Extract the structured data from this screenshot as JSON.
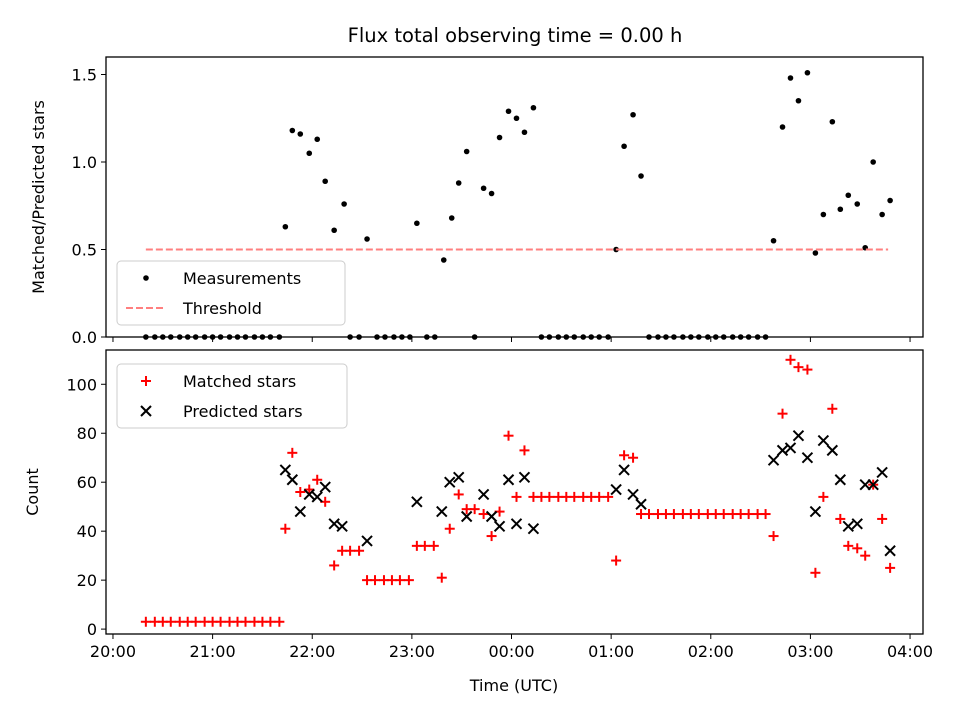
{
  "chart_data": {
    "title": "Flux total observing time = 0.00 h",
    "xlabel": "Time (UTC)",
    "x_ticks": [
      "20:00",
      "21:00",
      "22:00",
      "23:00",
      "00:00",
      "01:00",
      "02:00",
      "03:00",
      "04:00"
    ],
    "x_range_hours": [
      19.93,
      28.13
    ],
    "panels": [
      {
        "type": "scatter",
        "ylabel": "Matched/Predicted stars",
        "ylim": [
          0,
          1.6
        ],
        "yticks": [
          0.0,
          0.5,
          1.0,
          1.5
        ],
        "ytick_labels": [
          "0.0",
          "0.5",
          "1.0",
          "1.5"
        ],
        "legend_position": "lower-left",
        "series": [
          {
            "name": "Measurements",
            "marker": "dot",
            "color": "#000000",
            "points": [
              [
                20.33,
                0
              ],
              [
                20.42,
                0
              ],
              [
                20.5,
                0
              ],
              [
                20.58,
                0
              ],
              [
                20.67,
                0
              ],
              [
                20.75,
                0
              ],
              [
                20.83,
                0
              ],
              [
                20.92,
                0
              ],
              [
                21.0,
                0
              ],
              [
                21.08,
                0
              ],
              [
                21.17,
                0
              ],
              [
                21.25,
                0
              ],
              [
                21.33,
                0
              ],
              [
                21.42,
                0
              ],
              [
                21.5,
                0
              ],
              [
                21.58,
                0
              ],
              [
                21.67,
                0
              ],
              [
                21.73,
                0.63
              ],
              [
                21.8,
                1.18
              ],
              [
                21.88,
                1.16
              ],
              [
                21.97,
                1.05
              ],
              [
                22.05,
                1.13
              ],
              [
                22.13,
                0.89
              ],
              [
                22.22,
                0.61
              ],
              [
                22.32,
                0.76
              ],
              [
                22.38,
                0
              ],
              [
                22.47,
                0
              ],
              [
                22.55,
                0.56
              ],
              [
                22.65,
                0
              ],
              [
                22.73,
                0
              ],
              [
                22.82,
                0
              ],
              [
                22.9,
                0
              ],
              [
                22.98,
                0
              ],
              [
                23.05,
                0.65
              ],
              [
                23.15,
                0
              ],
              [
                23.23,
                0
              ],
              [
                23.32,
                0.44
              ],
              [
                23.4,
                0.68
              ],
              [
                23.47,
                0.88
              ],
              [
                23.55,
                1.06
              ],
              [
                23.63,
                0
              ],
              [
                23.72,
                0.85
              ],
              [
                23.8,
                0.82
              ],
              [
                23.88,
                1.14
              ],
              [
                23.97,
                1.29
              ],
              [
                24.05,
                1.25
              ],
              [
                24.13,
                1.17
              ],
              [
                24.22,
                1.31
              ],
              [
                24.3,
                0
              ],
              [
                24.38,
                0
              ],
              [
                24.47,
                0
              ],
              [
                24.55,
                0
              ],
              [
                24.63,
                0
              ],
              [
                24.72,
                0
              ],
              [
                24.8,
                0
              ],
              [
                24.88,
                0
              ],
              [
                24.97,
                0
              ],
              [
                25.05,
                0.5
              ],
              [
                25.13,
                1.09
              ],
              [
                25.22,
                1.27
              ],
              [
                25.3,
                0.92
              ],
              [
                25.38,
                0
              ],
              [
                25.47,
                0
              ],
              [
                25.55,
                0
              ],
              [
                25.63,
                0
              ],
              [
                25.72,
                0
              ],
              [
                25.8,
                0
              ],
              [
                25.88,
                0
              ],
              [
                25.97,
                0
              ],
              [
                26.05,
                0
              ],
              [
                26.13,
                0
              ],
              [
                26.22,
                0
              ],
              [
                26.3,
                0
              ],
              [
                26.38,
                0
              ],
              [
                26.47,
                0
              ],
              [
                26.55,
                0
              ],
              [
                26.63,
                0.55
              ],
              [
                26.72,
                1.2
              ],
              [
                26.8,
                1.48
              ],
              [
                26.88,
                1.35
              ],
              [
                26.97,
                1.51
              ],
              [
                27.05,
                0.48
              ],
              [
                27.13,
                0.7
              ],
              [
                27.22,
                1.23
              ],
              [
                27.3,
                0.73
              ],
              [
                27.38,
                0.81
              ],
              [
                27.47,
                0.76
              ],
              [
                27.55,
                0.51
              ],
              [
                27.63,
                1.0
              ],
              [
                27.72,
                0.7
              ],
              [
                27.8,
                0.78
              ]
            ]
          },
          {
            "name": "Threshold",
            "style": "dashed",
            "color": "#ff7f7f",
            "points": [
              [
                20.33,
                0.5
              ],
              [
                27.78,
                0.5
              ]
            ]
          }
        ]
      },
      {
        "type": "scatter",
        "ylabel": "Count",
        "ylim": [
          -2,
          114
        ],
        "yticks": [
          0,
          20,
          40,
          60,
          80,
          100
        ],
        "ytick_labels": [
          "0",
          "20",
          "40",
          "60",
          "80",
          "100"
        ],
        "legend_position": "upper-left",
        "series": [
          {
            "name": "Matched stars",
            "marker": "plus",
            "color": "#ff0000",
            "points": [
              [
                20.33,
                3
              ],
              [
                20.42,
                3
              ],
              [
                20.5,
                3
              ],
              [
                20.58,
                3
              ],
              [
                20.67,
                3
              ],
              [
                20.75,
                3
              ],
              [
                20.83,
                3
              ],
              [
                20.92,
                3
              ],
              [
                21.0,
                3
              ],
              [
                21.08,
                3
              ],
              [
                21.17,
                3
              ],
              [
                21.25,
                3
              ],
              [
                21.33,
                3
              ],
              [
                21.42,
                3
              ],
              [
                21.5,
                3
              ],
              [
                21.58,
                3
              ],
              [
                21.67,
                3
              ],
              [
                21.73,
                41
              ],
              [
                21.8,
                72
              ],
              [
                21.88,
                56
              ],
              [
                21.97,
                57
              ],
              [
                22.05,
                61
              ],
              [
                22.13,
                52
              ],
              [
                22.22,
                26
              ],
              [
                22.3,
                32
              ],
              [
                22.38,
                32
              ],
              [
                22.47,
                32
              ],
              [
                22.55,
                20
              ],
              [
                22.63,
                20
              ],
              [
                22.72,
                20
              ],
              [
                22.8,
                20
              ],
              [
                22.88,
                20
              ],
              [
                22.97,
                20
              ],
              [
                23.05,
                34
              ],
              [
                23.13,
                34
              ],
              [
                23.22,
                34
              ],
              [
                23.3,
                21
              ],
              [
                23.38,
                41
              ],
              [
                23.47,
                55
              ],
              [
                23.55,
                49
              ],
              [
                23.63,
                49
              ],
              [
                23.72,
                47
              ],
              [
                23.8,
                38
              ],
              [
                23.88,
                48
              ],
              [
                23.97,
                79
              ],
              [
                24.05,
                54
              ],
              [
                24.13,
                73
              ],
              [
                24.22,
                54
              ],
              [
                24.3,
                54
              ],
              [
                24.38,
                54
              ],
              [
                24.47,
                54
              ],
              [
                24.55,
                54
              ],
              [
                24.63,
                54
              ],
              [
                24.72,
                54
              ],
              [
                24.8,
                54
              ],
              [
                24.88,
                54
              ],
              [
                24.97,
                54
              ],
              [
                25.05,
                28
              ],
              [
                25.13,
                71
              ],
              [
                25.22,
                70
              ],
              [
                25.3,
                47
              ],
              [
                25.38,
                47
              ],
              [
                25.47,
                47
              ],
              [
                25.55,
                47
              ],
              [
                25.63,
                47
              ],
              [
                25.72,
                47
              ],
              [
                25.8,
                47
              ],
              [
                25.88,
                47
              ],
              [
                25.97,
                47
              ],
              [
                26.05,
                47
              ],
              [
                26.13,
                47
              ],
              [
                26.22,
                47
              ],
              [
                26.3,
                47
              ],
              [
                26.38,
                47
              ],
              [
                26.47,
                47
              ],
              [
                26.55,
                47
              ],
              [
                26.63,
                38
              ],
              [
                26.72,
                88
              ],
              [
                26.8,
                110
              ],
              [
                26.88,
                107
              ],
              [
                26.97,
                106
              ],
              [
                27.05,
                23
              ],
              [
                27.13,
                54
              ],
              [
                27.22,
                90
              ],
              [
                27.3,
                45
              ],
              [
                27.38,
                34
              ],
              [
                27.47,
                33
              ],
              [
                27.55,
                30
              ],
              [
                27.63,
                59
              ],
              [
                27.72,
                45
              ],
              [
                27.8,
                25
              ]
            ]
          },
          {
            "name": "Predicted stars",
            "marker": "x",
            "color": "#000000",
            "points": [
              [
                21.73,
                65
              ],
              [
                21.8,
                61
              ],
              [
                21.88,
                48
              ],
              [
                21.97,
                55
              ],
              [
                22.05,
                54
              ],
              [
                22.13,
                58
              ],
              [
                22.22,
                43
              ],
              [
                22.3,
                42
              ],
              [
                22.55,
                36
              ],
              [
                23.05,
                52
              ],
              [
                23.3,
                48
              ],
              [
                23.38,
                60
              ],
              [
                23.47,
                62
              ],
              [
                23.55,
                46
              ],
              [
                23.72,
                55
              ],
              [
                23.8,
                46
              ],
              [
                23.88,
                42
              ],
              [
                23.97,
                61
              ],
              [
                24.05,
                43
              ],
              [
                24.13,
                62
              ],
              [
                24.22,
                41
              ],
              [
                25.05,
                57
              ],
              [
                25.13,
                65
              ],
              [
                25.22,
                55
              ],
              [
                25.3,
                51
              ],
              [
                26.63,
                69
              ],
              [
                26.72,
                73
              ],
              [
                26.8,
                74
              ],
              [
                26.88,
                79
              ],
              [
                26.97,
                70
              ],
              [
                27.05,
                48
              ],
              [
                27.13,
                77
              ],
              [
                27.22,
                73
              ],
              [
                27.3,
                61
              ],
              [
                27.38,
                42
              ],
              [
                27.47,
                43
              ],
              [
                27.55,
                59
              ],
              [
                27.63,
                59
              ],
              [
                27.72,
                64
              ],
              [
                27.8,
                32
              ]
            ]
          }
        ]
      }
    ]
  }
}
